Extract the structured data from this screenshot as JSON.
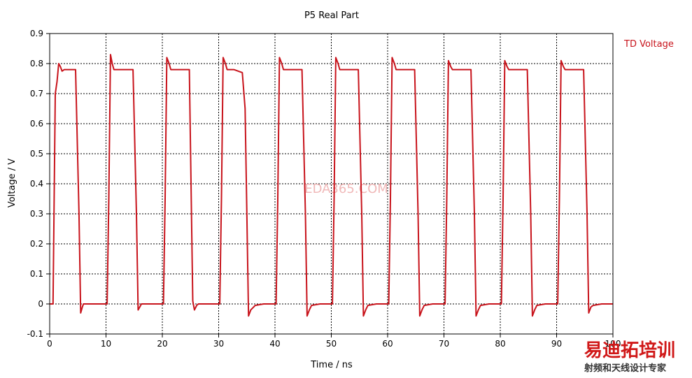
{
  "colors": {
    "series": "#c8141c",
    "grid": "#000000",
    "axis": "#000000",
    "text": "#000000",
    "watermark": "#f0b8b8",
    "logo_red": "#d01818",
    "logo_dark": "#333333"
  },
  "watermarks": {
    "center": "EDA365.COM",
    "logo_main": "易迪拓培训",
    "logo_sub": "射频和天线设计专家"
  },
  "chart_data": {
    "type": "line",
    "title": "P5 Real Part",
    "xlabel": "Time / ns",
    "ylabel": "Voltage / V",
    "xlim": [
      0,
      100
    ],
    "ylim": [
      -0.1,
      0.9
    ],
    "xticks": [
      "0",
      "10",
      "20",
      "30",
      "40",
      "50",
      "60",
      "70",
      "80",
      "90",
      "100"
    ],
    "yticks": [
      "-0.1",
      "0",
      "0.1",
      "0.2",
      "0.3",
      "0.4",
      "0.5",
      "0.6",
      "0.7",
      "0.8",
      "0.9"
    ],
    "grid": "dotted, on",
    "legend_position": "top-right, outside plot",
    "series": [
      {
        "name": "TD Voltage",
        "x": [
          0,
          0.6,
          0.8,
          1.0,
          1.3,
          1.6,
          1.9,
          2.2,
          2.6,
          3.0,
          4.6,
          5.2,
          5.5,
          5.8,
          6.0,
          6.3,
          7.0,
          10.2,
          10.5,
          10.8,
          11.1,
          11.4,
          11.7,
          12.1,
          12.6,
          14.8,
          15.4,
          15.7,
          16.0,
          16.3,
          17.5,
          20.2,
          20.5,
          20.8,
          21.2,
          21.5,
          21.8,
          22.2,
          22.7,
          24.8,
          25.4,
          25.7,
          26.1,
          26.4,
          27.5,
          30.2,
          30.5,
          30.8,
          31.2,
          31.5,
          31.8,
          32.2,
          32.7,
          34.2,
          34.7,
          35.0,
          35.3,
          35.7,
          36.5,
          38.0,
          40.2,
          40.5,
          40.8,
          41.2,
          41.5,
          41.8,
          42.2,
          42.7,
          44.8,
          45.4,
          45.7,
          46.1,
          46.5,
          48.0,
          50.2,
          50.5,
          50.8,
          51.2,
          51.5,
          51.8,
          52.2,
          52.7,
          54.8,
          55.4,
          55.7,
          56.1,
          56.5,
          58.0,
          60.2,
          60.5,
          60.8,
          61.2,
          61.5,
          61.8,
          62.2,
          62.7,
          64.8,
          65.4,
          65.7,
          66.1,
          66.5,
          68.0,
          70.2,
          70.5,
          70.8,
          71.2,
          71.5,
          71.8,
          72.2,
          72.7,
          74.8,
          75.4,
          75.7,
          76.1,
          76.5,
          78.0,
          80.2,
          80.5,
          80.8,
          81.2,
          81.5,
          81.8,
          82.2,
          82.7,
          84.8,
          85.4,
          85.7,
          86.1,
          86.5,
          88.0,
          90.2,
          90.5,
          90.8,
          91.2,
          91.5,
          91.8,
          92.2,
          92.7,
          94.8,
          95.4,
          95.7,
          96.1,
          96.5,
          98.0,
          100
        ],
        "y": [
          0,
          0,
          0.35,
          0.7,
          0.74,
          0.8,
          0.79,
          0.775,
          0.78,
          0.78,
          0.78,
          0.3,
          -0.03,
          -0.01,
          0,
          0,
          0,
          0,
          0.35,
          0.83,
          0.8,
          0.78,
          0.78,
          0.78,
          0.78,
          0.78,
          0.3,
          -0.02,
          -0.01,
          0,
          0,
          0,
          0.35,
          0.82,
          0.8,
          0.78,
          0.78,
          0.78,
          0.78,
          0.78,
          0.01,
          -0.02,
          -0.005,
          0,
          0,
          0,
          0.35,
          0.82,
          0.8,
          0.78,
          0.78,
          0.78,
          0.78,
          0.77,
          0.65,
          0.3,
          -0.04,
          -0.02,
          -0.005,
          0,
          0,
          0.35,
          0.82,
          0.8,
          0.78,
          0.78,
          0.78,
          0.78,
          0.78,
          0.3,
          -0.04,
          -0.02,
          -0.005,
          0,
          0,
          0.35,
          0.82,
          0.8,
          0.78,
          0.78,
          0.78,
          0.78,
          0.78,
          0.3,
          -0.04,
          -0.02,
          -0.005,
          0,
          0,
          0.35,
          0.82,
          0.8,
          0.78,
          0.78,
          0.78,
          0.78,
          0.78,
          0.3,
          -0.04,
          -0.02,
          -0.005,
          0,
          0,
          0.35,
          0.81,
          0.79,
          0.78,
          0.78,
          0.78,
          0.78,
          0.78,
          0.3,
          -0.04,
          -0.02,
          -0.005,
          0,
          0,
          0.35,
          0.81,
          0.79,
          0.78,
          0.78,
          0.78,
          0.78,
          0.78,
          0.3,
          -0.04,
          -0.02,
          -0.005,
          0,
          0,
          0.35,
          0.81,
          0.79,
          0.78,
          0.78,
          0.78,
          0.78,
          0.78,
          0.3,
          -0.03,
          -0.01,
          -0.005,
          0,
          0
        ]
      }
    ]
  }
}
